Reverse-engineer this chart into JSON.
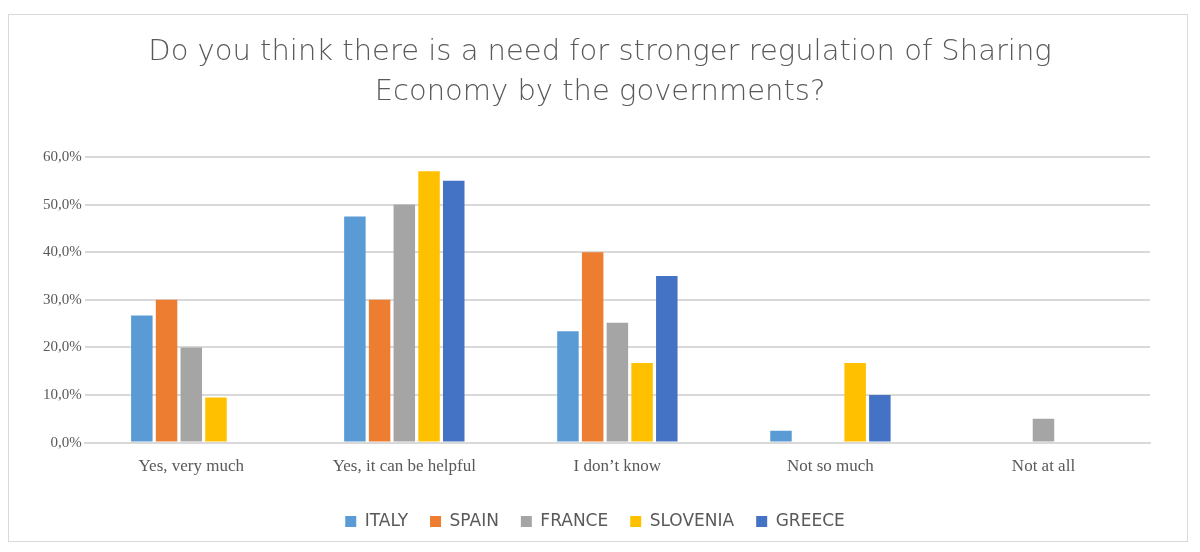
{
  "chart_data": {
    "type": "bar",
    "title": "Do you think there is a need for stronger regulation of Sharing Economy by the governments?",
    "categories": [
      "Yes, very much",
      "Yes, it can be helpful",
      "I don’t know",
      "Not so much",
      "Not at all"
    ],
    "series": [
      {
        "name": "ITALY",
        "color": "#5b9bd5",
        "values": [
          26.7,
          47.5,
          23.4,
          2.5,
          0
        ]
      },
      {
        "name": "SPAIN",
        "color": "#ed7d31",
        "values": [
          30,
          30,
          40,
          0,
          0
        ]
      },
      {
        "name": "FRANCE",
        "color": "#a5a5a5",
        "values": [
          20,
          50,
          25.2,
          0,
          5
        ]
      },
      {
        "name": "SLOVENIA",
        "color": "#ffc000",
        "values": [
          9.5,
          57,
          16.7,
          16.7,
          0
        ]
      },
      {
        "name": "GREECE",
        "color": "#4472c4",
        "values": [
          0,
          55,
          35,
          10,
          0
        ]
      }
    ],
    "ylim": [
      0,
      60
    ],
    "yticks": [
      {
        "value": 0,
        "label": "0,0%"
      },
      {
        "value": 10,
        "label": "10,0%"
      },
      {
        "value": 20,
        "label": "20,0%"
      },
      {
        "value": 30,
        "label": "30,0%"
      },
      {
        "value": 40,
        "label": "40,0%"
      },
      {
        "value": 50,
        "label": "50,0%"
      },
      {
        "value": 60,
        "label": "60,0%"
      }
    ],
    "grid": "y",
    "legend": "bottom"
  }
}
